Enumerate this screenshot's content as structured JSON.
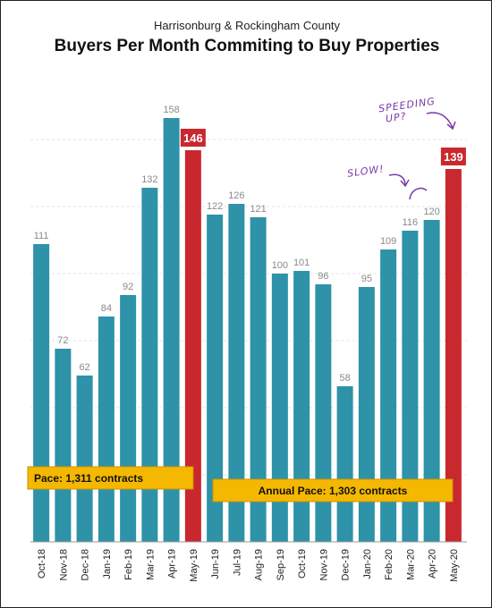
{
  "chart_data": {
    "type": "bar",
    "title": "Buyers Per Month Commiting to Buy Properties",
    "subtitle": "Harrisonburg & Rockingham County",
    "categories": [
      "Oct-18",
      "Nov-18",
      "Dec-18",
      "Jan-19",
      "Feb-19",
      "Mar-19",
      "Apr-19",
      "May-19",
      "Jun-19",
      "Jul-19",
      "Aug-19",
      "Sep-19",
      "Oct-19",
      "Nov-19",
      "Dec-19",
      "Jan-20",
      "Feb-20",
      "Mar-20",
      "Apr-20",
      "May-20"
    ],
    "values": [
      111,
      72,
      62,
      84,
      92,
      132,
      158,
      146,
      122,
      126,
      121,
      100,
      101,
      96,
      58,
      95,
      109,
      116,
      120,
      139
    ],
    "highlighted": [
      "May-19",
      "May-20"
    ],
    "ylim": [
      0,
      170
    ],
    "grid": true,
    "colors": {
      "bar": "#2e92a8",
      "highlight": "#c9282e",
      "label": "#8a8a8a",
      "pace_box": "#f5b800"
    },
    "annotations": {
      "pace_left": "Pace: 1,311 contracts",
      "pace_right": "Annual Pace: 1,303 contracts",
      "slow": "SLOW!",
      "speeding_line1": "SPEEDING",
      "speeding_line2": "UP?"
    }
  }
}
